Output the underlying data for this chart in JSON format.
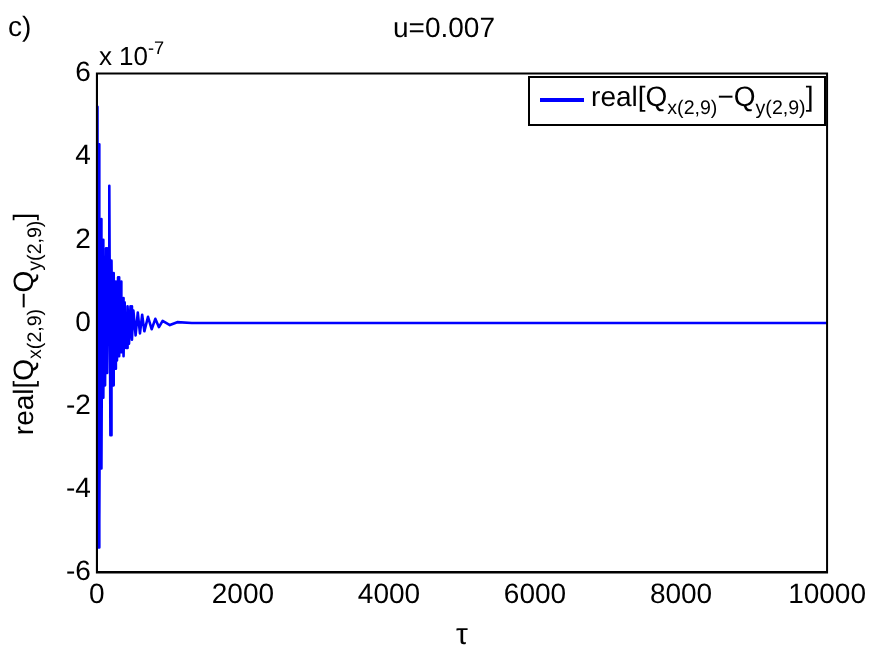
{
  "chart_data": {
    "type": "line",
    "title": "u=0.007",
    "xlabel": "τ",
    "ylabel": "real[Q$_{x(2,9)}$−Q$_{y(2,9)}$]",
    "annotations": [
      "c)",
      "x 10$^{-7}$"
    ],
    "x": [
      0,
      8,
      16,
      28,
      38,
      50,
      62,
      75,
      88,
      100,
      112,
      125,
      140,
      155,
      170,
      185,
      200,
      215,
      230,
      245,
      260,
      275,
      290,
      305,
      320,
      335,
      350,
      365,
      380,
      400,
      420,
      440,
      460,
      480,
      500,
      530,
      560,
      590,
      620,
      650,
      700,
      750,
      800,
      850,
      900,
      1000,
      1100,
      1300,
      10000
    ],
    "series": [
      {
        "name": "real[Q$_{x(2,9)}$−Q$_{y(2,9)}$]",
        "color": "#0000ff",
        "values": [
          0,
          5.2,
          -5.4,
          4.3,
          -4.8,
          2.5,
          -3.5,
          2.0,
          -1.8,
          1.6,
          -1.5,
          1.8,
          -1.2,
          1.4,
          3.3,
          -2.7,
          1.5,
          -1.5,
          1.2,
          -1.1,
          1.0,
          -0.9,
          1.1,
          -0.8,
          1.0,
          -0.7,
          0.6,
          -0.8,
          0.5,
          -0.6,
          0.4,
          -0.5,
          0.4,
          -0.4,
          0.3,
          -0.3,
          0.25,
          -0.25,
          0.2,
          -0.2,
          0.15,
          -0.15,
          0.1,
          -0.1,
          0.05,
          -0.05,
          0.02,
          0,
          0
        ]
      }
    ],
    "xlim": [
      0,
      10000
    ],
    "xticks": [
      0,
      2000,
      4000,
      6000,
      8000,
      10000
    ],
    "ylim": [
      -6,
      6
    ],
    "yticks": [
      -6,
      -4,
      -2,
      0,
      2,
      4,
      6
    ],
    "grid": false,
    "legend": "top right",
    "marker": "none",
    "line_style": "solid"
  }
}
